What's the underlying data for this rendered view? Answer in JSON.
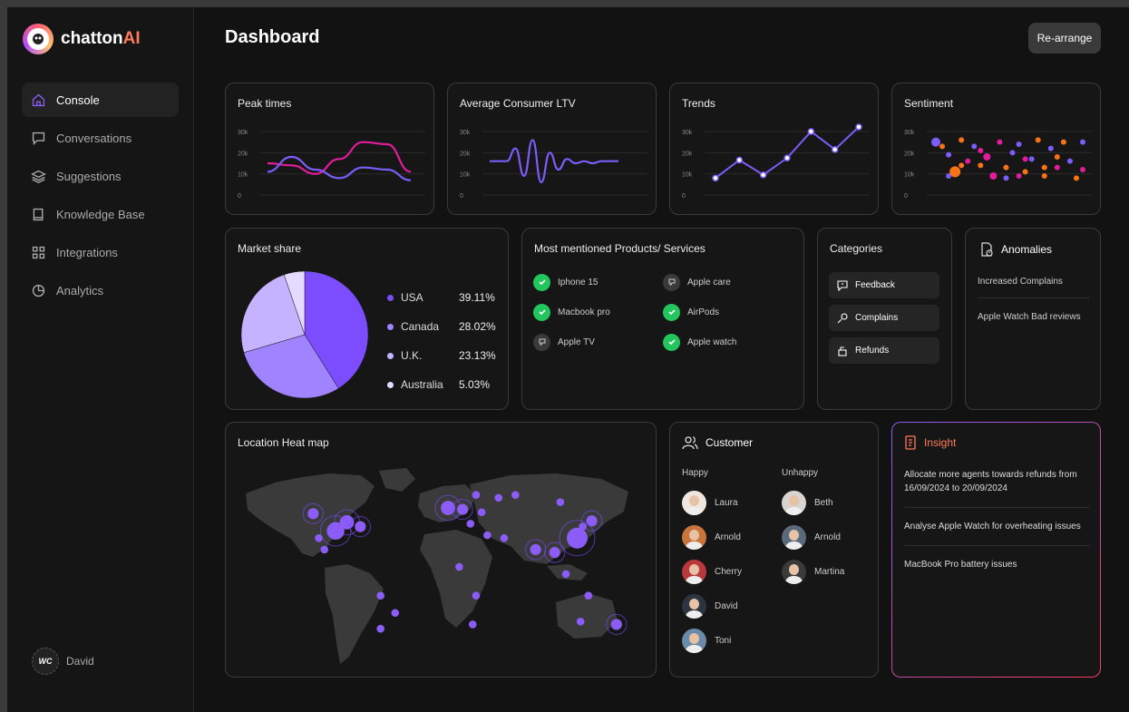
{
  "brand": {
    "name_a": "chatton",
    "name_b": "AI"
  },
  "nav": {
    "items": [
      {
        "label": "Console",
        "icon": "home-icon"
      },
      {
        "label": "Conversations",
        "icon": "chat-icon"
      },
      {
        "label": "Suggestions",
        "icon": "layers-icon"
      },
      {
        "label": "Knowledge Base",
        "icon": "book-icon"
      },
      {
        "label": "Integrations",
        "icon": "grid-icon"
      },
      {
        "label": "Analytics",
        "icon": "pie-icon"
      }
    ]
  },
  "user": {
    "initials": "WC",
    "name": "David"
  },
  "header": {
    "title": "Dashboard",
    "rearrange_label": "Re-arrange"
  },
  "cards": {
    "peak": {
      "title": "Peak times"
    },
    "ltv": {
      "title": "Average Consumer LTV"
    },
    "trends": {
      "title": "Trends"
    },
    "sentiment": {
      "title": "Sentiment"
    },
    "market": {
      "title": "Market share"
    },
    "products": {
      "title": "Most mentioned Products/ Services"
    },
    "categories": {
      "title": "Categories"
    },
    "anomalies": {
      "title": "Anomalies"
    },
    "heatmap": {
      "title": "Location Heat map"
    },
    "customer": {
      "title": "Customer"
    },
    "insight": {
      "title": "Insight"
    }
  },
  "axis_ticks": [
    "30k",
    "20k",
    "10k",
    "0"
  ],
  "chart_data": [
    {
      "type": "line",
      "title": "Peak times",
      "ylim": [
        0,
        30000
      ],
      "y_ticks": [
        "30k",
        "20k",
        "10k",
        "0"
      ],
      "series": [
        {
          "name": "pink",
          "color": "#e11d9a",
          "values": [
            15000,
            14000,
            10000,
            17000,
            25000,
            24000,
            11000
          ]
        },
        {
          "name": "purple",
          "color": "#7c5cfa",
          "values": [
            11000,
            18000,
            12000,
            8000,
            13000,
            12000,
            7000
          ]
        }
      ]
    },
    {
      "type": "line",
      "title": "Average Consumer LTV",
      "ylim": [
        0,
        30000
      ],
      "y_ticks": [
        "30k",
        "20k",
        "10k",
        "0"
      ],
      "series": [
        {
          "name": "ltv",
          "color": "#7c5cfa",
          "values": [
            16000,
            16000,
            16000,
            22000,
            9000,
            26000,
            6000,
            20000,
            12000,
            17000,
            15000,
            16000,
            15000,
            16000,
            16000,
            16000
          ]
        }
      ]
    },
    {
      "type": "line",
      "title": "Trends",
      "ylim": [
        0,
        30000
      ],
      "y_ticks": [
        "30k",
        "20k",
        "10k",
        "0"
      ],
      "series": [
        {
          "name": "trends",
          "color": "#7c5cfa",
          "values": [
            8000,
            16500,
            9500,
            17500,
            30000,
            21500,
            33000
          ]
        }
      ]
    },
    {
      "type": "scatter",
      "title": "Sentiment",
      "ylim": [
        0,
        30000
      ],
      "y_ticks": [
        "30k",
        "20k",
        "10k",
        "0"
      ],
      "points": [
        {
          "x": 1,
          "y": 25000,
          "c": "#7c5cfa",
          "s": 5
        },
        {
          "x": 2,
          "y": 23000,
          "c": "#f97316",
          "s": 3
        },
        {
          "x": 3,
          "y": 19000,
          "c": "#7c5cfa",
          "s": 3
        },
        {
          "x": 4,
          "y": 11000,
          "c": "#f97316",
          "s": 6
        },
        {
          "x": 5,
          "y": 26000,
          "c": "#f97316",
          "s": 3
        },
        {
          "x": 6,
          "y": 16000,
          "c": "#e11d9a",
          "s": 3
        },
        {
          "x": 7,
          "y": 23000,
          "c": "#7c5cfa",
          "s": 3
        },
        {
          "x": 8,
          "y": 14000,
          "c": "#f97316",
          "s": 3
        },
        {
          "x": 9,
          "y": 18000,
          "c": "#e11d9a",
          "s": 4
        },
        {
          "x": 10,
          "y": 9000,
          "c": "#e11d9a",
          "s": 4
        },
        {
          "x": 11,
          "y": 25000,
          "c": "#e11d9a",
          "s": 3
        },
        {
          "x": 12,
          "y": 13000,
          "c": "#f97316",
          "s": 3
        },
        {
          "x": 13,
          "y": 20000,
          "c": "#7c5cfa",
          "s": 3
        },
        {
          "x": 14,
          "y": 24000,
          "c": "#7c5cfa",
          "s": 3
        },
        {
          "x": 15,
          "y": 11000,
          "c": "#f97316",
          "s": 3
        },
        {
          "x": 16,
          "y": 17000,
          "c": "#7c5cfa",
          "s": 3
        },
        {
          "x": 17,
          "y": 26000,
          "c": "#f97316",
          "s": 3
        },
        {
          "x": 18,
          "y": 9000,
          "c": "#f97316",
          "s": 3
        },
        {
          "x": 19,
          "y": 22000,
          "c": "#7c5cfa",
          "s": 3
        },
        {
          "x": 20,
          "y": 13000,
          "c": "#e11d9a",
          "s": 3
        },
        {
          "x": 21,
          "y": 25000,
          "c": "#f97316",
          "s": 3
        },
        {
          "x": 22,
          "y": 16000,
          "c": "#7c5cfa",
          "s": 3
        },
        {
          "x": 23,
          "y": 8000,
          "c": "#f97316",
          "s": 3
        },
        {
          "x": 24,
          "y": 25000,
          "c": "#7c5cfa",
          "s": 3
        },
        {
          "x": 3,
          "y": 9000,
          "c": "#7c5cfa",
          "s": 3
        },
        {
          "x": 5,
          "y": 14000,
          "c": "#f97316",
          "s": 3
        },
        {
          "x": 8,
          "y": 21000,
          "c": "#e11d9a",
          "s": 3
        },
        {
          "x": 12,
          "y": 8000,
          "c": "#7c5cfa",
          "s": 3
        },
        {
          "x": 15,
          "y": 17000,
          "c": "#e11d9a",
          "s": 3
        },
        {
          "x": 20,
          "y": 18000,
          "c": "#f97316",
          "s": 3
        },
        {
          "x": 24,
          "y": 12000,
          "c": "#e11d9a",
          "s": 3
        },
        {
          "x": 18,
          "y": 13000,
          "c": "#f97316",
          "s": 3
        },
        {
          "x": 14,
          "y": 9000,
          "c": "#e11d9a",
          "s": 3
        }
      ]
    },
    {
      "type": "pie",
      "title": "Market share",
      "slices": [
        {
          "label": "USA",
          "value": 39.11,
          "display": "39.11%",
          "color": "#7c4dff"
        },
        {
          "label": "Canada",
          "value": 28.02,
          "display": "28.02%",
          "color": "#a084ff"
        },
        {
          "label": "U.K.",
          "value": 23.13,
          "display": "23.13%",
          "color": "#c6b3ff"
        },
        {
          "label": "Australia",
          "value": 5.03,
          "display": "5.03%",
          "color": "#e4dbff"
        }
      ]
    }
  ],
  "products": [
    {
      "label": "Iphone 15",
      "status": "check"
    },
    {
      "label": "Apple care",
      "status": "thumbs-down"
    },
    {
      "label": "Macbook pro",
      "status": "check"
    },
    {
      "label": "AirPods",
      "status": "check"
    },
    {
      "label": "Apple TV",
      "status": "thumbs-down"
    },
    {
      "label": "Apple watch",
      "status": "check"
    }
  ],
  "categories": [
    {
      "label": "Feedback",
      "icon": "feedback-icon"
    },
    {
      "label": "Complains",
      "icon": "complain-icon"
    },
    {
      "label": "Refunds",
      "icon": "refund-icon"
    }
  ],
  "anomalies": [
    "Increased Complains",
    "Apple Watch Bad reviews"
  ],
  "customer": {
    "happy_label": "Happy",
    "unhappy_label": "Unhappy",
    "happy": [
      {
        "name": "Laura",
        "bg": "#f0e6e0"
      },
      {
        "name": "Arnold",
        "bg": "#c8743c"
      },
      {
        "name": "Cherry",
        "bg": "#b8383c"
      },
      {
        "name": "David",
        "bg": "#2c3440"
      },
      {
        "name": "Toni",
        "bg": "#6a8aa8"
      }
    ],
    "unhappy": [
      {
        "name": "Beth",
        "bg": "#d8d4d0"
      },
      {
        "name": "Arnold",
        "bg": "#5a6a7a"
      },
      {
        "name": "Martina",
        "bg": "#3a3a3a"
      }
    ]
  },
  "insights": [
    "Allocate more agents towards refunds from 16/09/2024 to 20/09/2024",
    "Analyse Apple Watch for overheating issues",
    "MacBook Pro battery issues"
  ],
  "heatmap": {
    "hotspots": [
      {
        "lon": -120,
        "lat": 47,
        "intensity": 2
      },
      {
        "lon": -90,
        "lat": 41,
        "intensity": 3
      },
      {
        "lon": -100,
        "lat": 35,
        "intensity": 4
      },
      {
        "lon": -78,
        "lat": 38,
        "intensity": 2
      },
      {
        "lon": -115,
        "lat": 30,
        "intensity": 1
      },
      {
        "lon": -110,
        "lat": 22,
        "intensity": 1
      },
      {
        "lon": -60,
        "lat": -10,
        "intensity": 1
      },
      {
        "lon": -47,
        "lat": -22,
        "intensity": 1
      },
      {
        "lon": -60,
        "lat": -33,
        "intensity": 1
      },
      {
        "lon": 0,
        "lat": 51,
        "intensity": 3
      },
      {
        "lon": 13,
        "lat": 50,
        "intensity": 2
      },
      {
        "lon": 25,
        "lat": 60,
        "intensity": 1
      },
      {
        "lon": 30,
        "lat": 48,
        "intensity": 1
      },
      {
        "lon": 45,
        "lat": 58,
        "intensity": 1
      },
      {
        "lon": 60,
        "lat": 60,
        "intensity": 1
      },
      {
        "lon": 20,
        "lat": 40,
        "intensity": 1
      },
      {
        "lon": 35,
        "lat": 32,
        "intensity": 1
      },
      {
        "lon": 50,
        "lat": 30,
        "intensity": 1
      },
      {
        "lon": 10,
        "lat": 10,
        "intensity": 1
      },
      {
        "lon": 25,
        "lat": -10,
        "intensity": 1
      },
      {
        "lon": 22,
        "lat": -30,
        "intensity": 1
      },
      {
        "lon": 78,
        "lat": 22,
        "intensity": 2
      },
      {
        "lon": 95,
        "lat": 20,
        "intensity": 2
      },
      {
        "lon": 100,
        "lat": 55,
        "intensity": 1
      },
      {
        "lon": 120,
        "lat": 38,
        "intensity": 1
      },
      {
        "lon": 128,
        "lat": 42,
        "intensity": 2
      },
      {
        "lon": 115,
        "lat": 30,
        "intensity": 5
      },
      {
        "lon": 105,
        "lat": 5,
        "intensity": 1
      },
      {
        "lon": 125,
        "lat": -10,
        "intensity": 1
      },
      {
        "lon": 118,
        "lat": -28,
        "intensity": 1
      },
      {
        "lon": 150,
        "lat": -30,
        "intensity": 2
      }
    ]
  }
}
